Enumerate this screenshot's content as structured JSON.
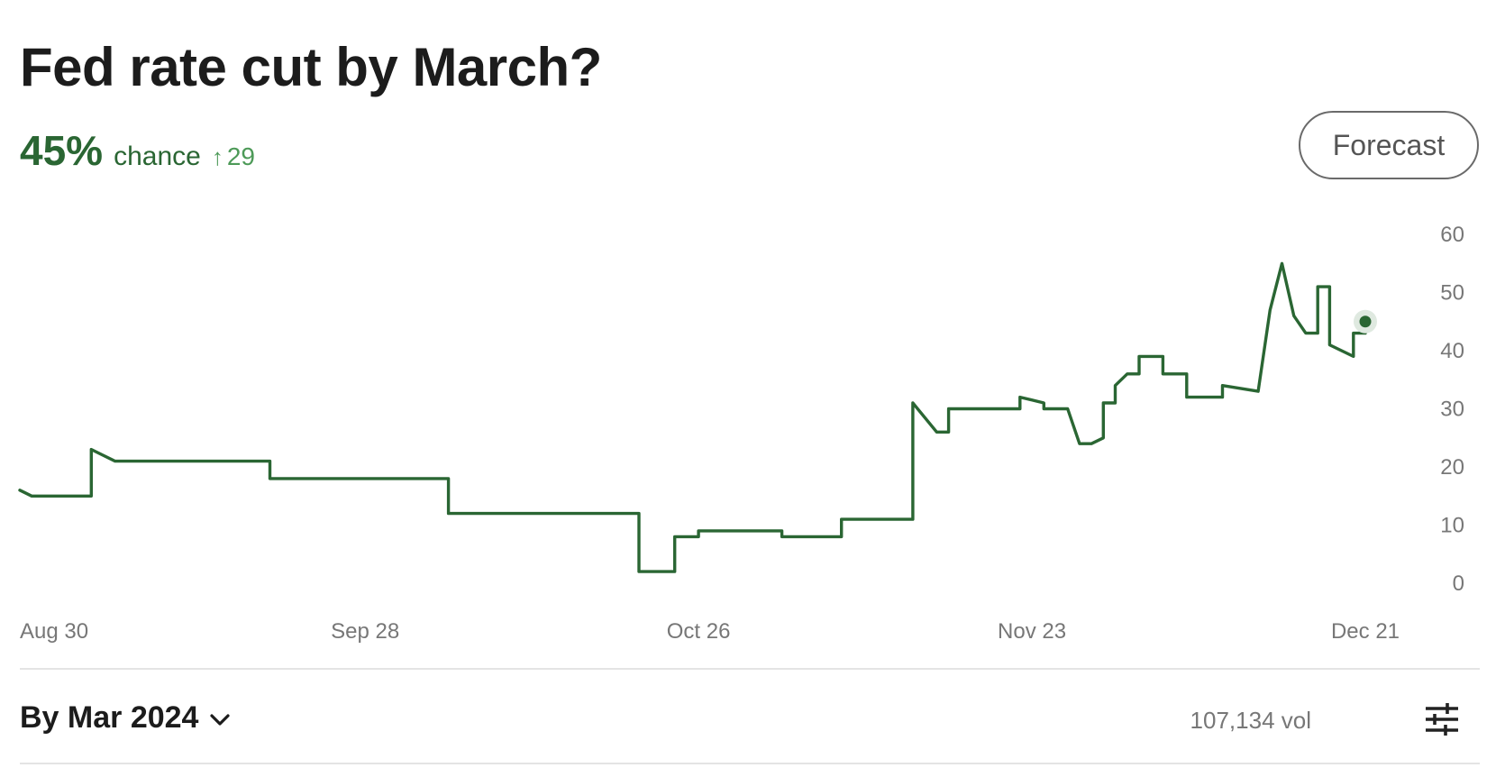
{
  "header": {
    "title": "Fed rate cut by March?",
    "probability": "45%",
    "probability_word": "chance",
    "change": "29",
    "change_icon": "arrow-up-icon",
    "forecast_label": "Forecast"
  },
  "footer": {
    "selector_label": "By Mar 2024",
    "volume": "107,134 vol",
    "filter_icon": "sliders-icon"
  },
  "colors": {
    "line": "#2a6633",
    "accent_light": "#4d9a58",
    "marker_halo": "#dfe9e0"
  },
  "chart_data": {
    "type": "line",
    "title": "",
    "xlabel": "",
    "ylabel": "",
    "x_tick_labels": [
      "Aug 30",
      "Sep 28",
      "Oct 26",
      "Nov 23",
      "Dec 21"
    ],
    "x_tick_dates": [
      "2023-08-30",
      "2023-09-28",
      "2023-10-26",
      "2023-11-23",
      "2023-12-21"
    ],
    "y_ticks": [
      0,
      10,
      20,
      30,
      40,
      50,
      60
    ],
    "ylim": [
      0,
      60
    ],
    "xlim": [
      "2023-08-30",
      "2023-12-21"
    ],
    "grid": false,
    "last_point_marker": true,
    "series": [
      {
        "x": [
          "2023-08-30",
          "2023-08-30",
          "2023-08-31",
          "2023-09-04",
          "2023-09-05",
          "2023-09-05",
          "2023-09-06",
          "2023-09-07",
          "2023-09-20",
          "2023-09-20",
          "2023-10-05",
          "2023-10-05",
          "2023-10-21",
          "2023-10-21",
          "2023-10-24",
          "2023-10-24",
          "2023-10-26",
          "2023-10-26",
          "2023-11-02",
          "2023-11-02",
          "2023-11-07",
          "2023-11-07",
          "2023-11-13",
          "2023-11-13",
          "2023-11-15",
          "2023-11-16",
          "2023-11-16",
          "2023-11-17",
          "2023-11-17",
          "2023-11-22",
          "2023-11-22",
          "2023-11-24",
          "2023-11-24",
          "2023-11-26",
          "2023-11-26",
          "2023-11-27",
          "2023-11-28",
          "2023-11-29",
          "2023-11-29",
          "2023-11-30",
          "2023-11-30",
          "2023-12-01",
          "2023-12-02",
          "2023-12-02",
          "2023-12-04",
          "2023-12-04",
          "2023-12-05",
          "2023-12-06",
          "2023-12-06",
          "2023-12-09",
          "2023-12-09",
          "2023-12-12",
          "2023-12-12",
          "2023-12-13",
          "2023-12-14",
          "2023-12-14",
          "2023-12-15",
          "2023-12-15",
          "2023-12-16",
          "2023-12-17",
          "2023-12-17",
          "2023-12-18",
          "2023-12-18",
          "2023-12-19",
          "2023-12-19",
          "2023-12-20",
          "2023-12-20",
          "2023-12-21",
          "2023-12-21"
        ],
        "values": [
          16,
          16,
          15,
          15,
          15,
          23,
          22,
          21,
          21,
          18,
          18,
          12,
          12,
          2,
          2,
          8,
          8,
          9,
          9,
          8,
          8,
          11,
          11,
          31,
          26,
          26,
          30,
          30,
          30,
          30,
          32,
          31,
          30,
          30,
          30,
          24,
          24,
          25,
          31,
          31,
          34,
          36,
          36,
          39,
          39,
          36,
          36,
          36,
          32,
          32,
          34,
          33,
          33,
          47,
          55,
          55,
          46,
          46,
          43,
          43,
          51,
          51,
          41,
          40,
          40,
          39,
          43,
          43,
          45
        ]
      }
    ]
  }
}
